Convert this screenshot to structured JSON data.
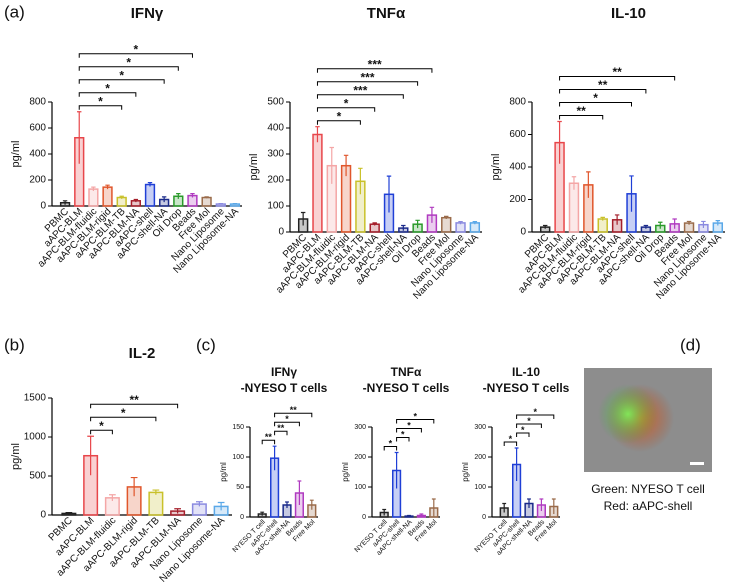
{
  "chart_data": [
    {
      "type": "bar",
      "title": "IFNγ",
      "ylabel": "pg/ml",
      "categories": [
        "PBMC",
        "aAPC-BLM",
        "aAPC-BLM-fluidic",
        "aAPC-BLM-rigid",
        "aAPC-BLM-TB",
        "aAPC-BLM-NA",
        "aAPC-shell",
        "aAPC-shell-NA",
        "Oil Drop",
        "Beads",
        "Free Mol",
        "Nano Liposome",
        "Nano Liposome-NA"
      ],
      "values": [
        25,
        525,
        130,
        145,
        65,
        40,
        165,
        50,
        75,
        80,
        65,
        15,
        15
      ],
      "errors": [
        15,
        200,
        15,
        15,
        10,
        10,
        15,
        20,
        20,
        15,
        5,
        3,
        3
      ],
      "colors": [
        "#222222",
        "#e8464a",
        "#f4a6a6",
        "#e0562b",
        "#c9c12a",
        "#a51e2a",
        "#1f3fd6",
        "#1a2a8a",
        "#2a9a2a",
        "#b03ac0",
        "#9a6b4a",
        "#8a8ae0",
        "#5aa8e8"
      ],
      "ylim": [
        0,
        800
      ],
      "yticks": [
        0,
        200,
        400,
        600,
        800
      ],
      "annotations": [
        {
          "text": "*",
          "from": "aAPC-BLM",
          "to": "aAPC-BLM-TB"
        },
        {
          "text": "*",
          "from": "aAPC-BLM",
          "to": "aAPC-BLM-NA"
        },
        {
          "text": "*",
          "from": "aAPC-BLM",
          "to": "aAPC-shell-NA"
        },
        {
          "text": "*",
          "from": "aAPC-BLM",
          "to": "Oil Drop"
        },
        {
          "text": "*",
          "from": "aAPC-BLM",
          "to": "Beads"
        }
      ]
    },
    {
      "type": "bar",
      "title": "TNFα",
      "ylabel": "pg/ml",
      "categories": [
        "PBMC",
        "aAPC-BLM",
        "aAPC-BLM-fluidic",
        "aAPC-BLM-rigid",
        "aAPC-BLM-TB",
        "aAPC-BLM-NA",
        "aAPC-shell",
        "aAPC-shell-NA",
        "Oil Drop",
        "Beads",
        "Free Mol",
        "Nano Liposome",
        "Nano Liposome-NA"
      ],
      "values": [
        50,
        375,
        255,
        255,
        195,
        30,
        145,
        15,
        30,
        65,
        55,
        35,
        35
      ],
      "errors": [
        25,
        30,
        70,
        40,
        50,
        5,
        70,
        10,
        15,
        30,
        5,
        5,
        5
      ],
      "colors": [
        "#222222",
        "#e8464a",
        "#f4a6a6",
        "#e0562b",
        "#c9c12a",
        "#a51e2a",
        "#1f3fd6",
        "#1a2a8a",
        "#2a9a2a",
        "#b03ac0",
        "#9a6b4a",
        "#8a8ae0",
        "#5aa8e8"
      ],
      "ylim": [
        0,
        500
      ],
      "yticks": [
        0,
        100,
        200,
        300,
        400,
        500
      ],
      "annotations": [
        {
          "text": "*",
          "from": "aAPC-BLM",
          "to": "aAPC-BLM-TB"
        },
        {
          "text": "*",
          "from": "aAPC-BLM",
          "to": "aAPC-BLM-NA"
        },
        {
          "text": "***",
          "from": "aAPC-BLM",
          "to": "aAPC-shell-NA"
        },
        {
          "text": "***",
          "from": "aAPC-BLM",
          "to": "Oil Drop"
        },
        {
          "text": "***",
          "from": "aAPC-BLM",
          "to": "Beads"
        }
      ]
    },
    {
      "type": "bar",
      "title": "IL-10",
      "ylabel": "pg/ml",
      "categories": [
        "PBMC",
        "aAPC-BLM",
        "aAPC-BLM-fluidic",
        "aAPC-BLM-rigid",
        "aAPC-BLM-TB",
        "aAPC-BLM-NA",
        "aAPC-shell",
        "aAPC-shell-NA",
        "Oil Drop",
        "Beads",
        "Free Mol",
        "Nano Liposome",
        "Nano Liposome-NA"
      ],
      "values": [
        30,
        550,
        300,
        290,
        80,
        75,
        235,
        30,
        40,
        50,
        55,
        45,
        55
      ],
      "errors": [
        10,
        130,
        40,
        80,
        10,
        30,
        110,
        10,
        20,
        30,
        10,
        20,
        15
      ],
      "colors": [
        "#222222",
        "#e8464a",
        "#f4a6a6",
        "#e0562b",
        "#c9c12a",
        "#a51e2a",
        "#1f3fd6",
        "#1a2a8a",
        "#2a9a2a",
        "#b03ac0",
        "#9a6b4a",
        "#8a8ae0",
        "#5aa8e8"
      ],
      "ylim": [
        0,
        800
      ],
      "yticks": [
        0,
        200,
        400,
        600,
        800
      ],
      "annotations": [
        {
          "text": "**",
          "from": "aAPC-BLM",
          "to": "aAPC-BLM-TB"
        },
        {
          "text": "*",
          "from": "aAPC-BLM",
          "to": "aAPC-shell"
        },
        {
          "text": "**",
          "from": "aAPC-BLM",
          "to": "aAPC-shell-NA"
        },
        {
          "text": "**",
          "from": "aAPC-BLM",
          "to": "Beads"
        }
      ]
    },
    {
      "type": "bar",
      "title": "IL-2",
      "ylabel": "pg/ml",
      "categories": [
        "PBMC",
        "aAPC-BLM",
        "aAPC-BLM-fluidic",
        "aAPC-BLM-rigid",
        "aAPC-BLM-TB",
        "aAPC-BLM-NA",
        "Nano Liposome",
        "Nano Liposome-NA"
      ],
      "values": [
        20,
        760,
        220,
        360,
        290,
        50,
        140,
        110
      ],
      "errors": [
        10,
        250,
        40,
        120,
        30,
        30,
        30,
        50
      ],
      "colors": [
        "#222222",
        "#e8464a",
        "#f4a6a6",
        "#e0562b",
        "#c9c12a",
        "#a51e2a",
        "#8a8ae0",
        "#5aa8e8"
      ],
      "ylim": [
        0,
        1500
      ],
      "yticks": [
        0,
        500,
        1000,
        1500
      ],
      "annotations": [
        {
          "text": "*",
          "from": "aAPC-BLM",
          "to": "aAPC-BLM-fluidic"
        },
        {
          "text": "*",
          "from": "aAPC-BLM",
          "to": "aAPC-BLM-TB"
        },
        {
          "text": "**",
          "from": "aAPC-BLM",
          "to": "aAPC-BLM-NA"
        }
      ]
    },
    {
      "type": "bar",
      "title": [
        "IFNγ",
        "-NYESO T cells"
      ],
      "ylabel": "pg/ml",
      "categories": [
        "NYESO T cell",
        "aAPC-shell",
        "aAPC-shell-NA",
        "Beads",
        "Free Mol"
      ],
      "values": [
        5,
        98,
        20,
        40,
        20
      ],
      "errors": [
        3,
        20,
        5,
        20,
        8
      ],
      "colors": [
        "#222222",
        "#1f3fd6",
        "#1a2a8a",
        "#b03ac0",
        "#9a6b4a"
      ],
      "ylim": [
        0,
        150
      ],
      "yticks": [
        0,
        50,
        100,
        150
      ],
      "annotations": [
        {
          "text": "**",
          "from": "NYESO T cell",
          "to": "aAPC-shell"
        },
        {
          "text": "**",
          "from": "aAPC-shell",
          "to": "aAPC-shell-NA"
        },
        {
          "text": "*",
          "from": "aAPC-shell",
          "to": "Beads"
        },
        {
          "text": "**",
          "from": "aAPC-shell",
          "to": "Free Mol"
        }
      ]
    },
    {
      "type": "bar",
      "title": [
        "TNFα",
        "-NYESO T cells"
      ],
      "ylabel": "pg/ml",
      "categories": [
        "NYESO T cell",
        "aAPC-shell",
        "aAPC-shell-NA",
        "Beads",
        "Free Mol"
      ],
      "values": [
        15,
        155,
        3,
        5,
        30
      ],
      "errors": [
        10,
        60,
        2,
        5,
        30
      ],
      "colors": [
        "#222222",
        "#1f3fd6",
        "#1a2a8a",
        "#b03ac0",
        "#9a6b4a"
      ],
      "ylim": [
        0,
        300
      ],
      "yticks": [
        0,
        100,
        200,
        300
      ],
      "annotations": [
        {
          "text": "*",
          "from": "NYESO T cell",
          "to": "aAPC-shell"
        },
        {
          "text": "*",
          "from": "aAPC-shell",
          "to": "aAPC-shell-NA"
        },
        {
          "text": "*",
          "from": "aAPC-shell",
          "to": "Beads"
        },
        {
          "text": "*",
          "from": "aAPC-shell",
          "to": "Free Mol"
        }
      ]
    },
    {
      "type": "bar",
      "title": [
        "IL-10",
        "-NYESO T cells"
      ],
      "ylabel": "pg/ml",
      "categories": [
        "NYESO T cell",
        "aAPC-shell",
        "aAPC-shell-NA",
        "Beads",
        "Free Mol"
      ],
      "values": [
        30,
        175,
        45,
        40,
        35
      ],
      "errors": [
        15,
        55,
        15,
        20,
        25
      ],
      "colors": [
        "#222222",
        "#1f3fd6",
        "#1a2a8a",
        "#b03ac0",
        "#9a6b4a"
      ],
      "ylim": [
        0,
        300
      ],
      "yticks": [
        0,
        100,
        200,
        300
      ],
      "annotations": [
        {
          "text": "*",
          "from": "NYESO T cell",
          "to": "aAPC-shell"
        },
        {
          "text": "*",
          "from": "aAPC-shell",
          "to": "aAPC-shell-NA"
        },
        {
          "text": "*",
          "from": "aAPC-shell",
          "to": "Beads"
        },
        {
          "text": "*",
          "from": "aAPC-shell",
          "to": "Free Mol"
        }
      ]
    }
  ],
  "panel_labels": [
    "(a)",
    "(b)",
    "(c)",
    "(d)"
  ],
  "image_caption": [
    "Green: NYESO T cell",
    "Red: aAPC-shell"
  ]
}
